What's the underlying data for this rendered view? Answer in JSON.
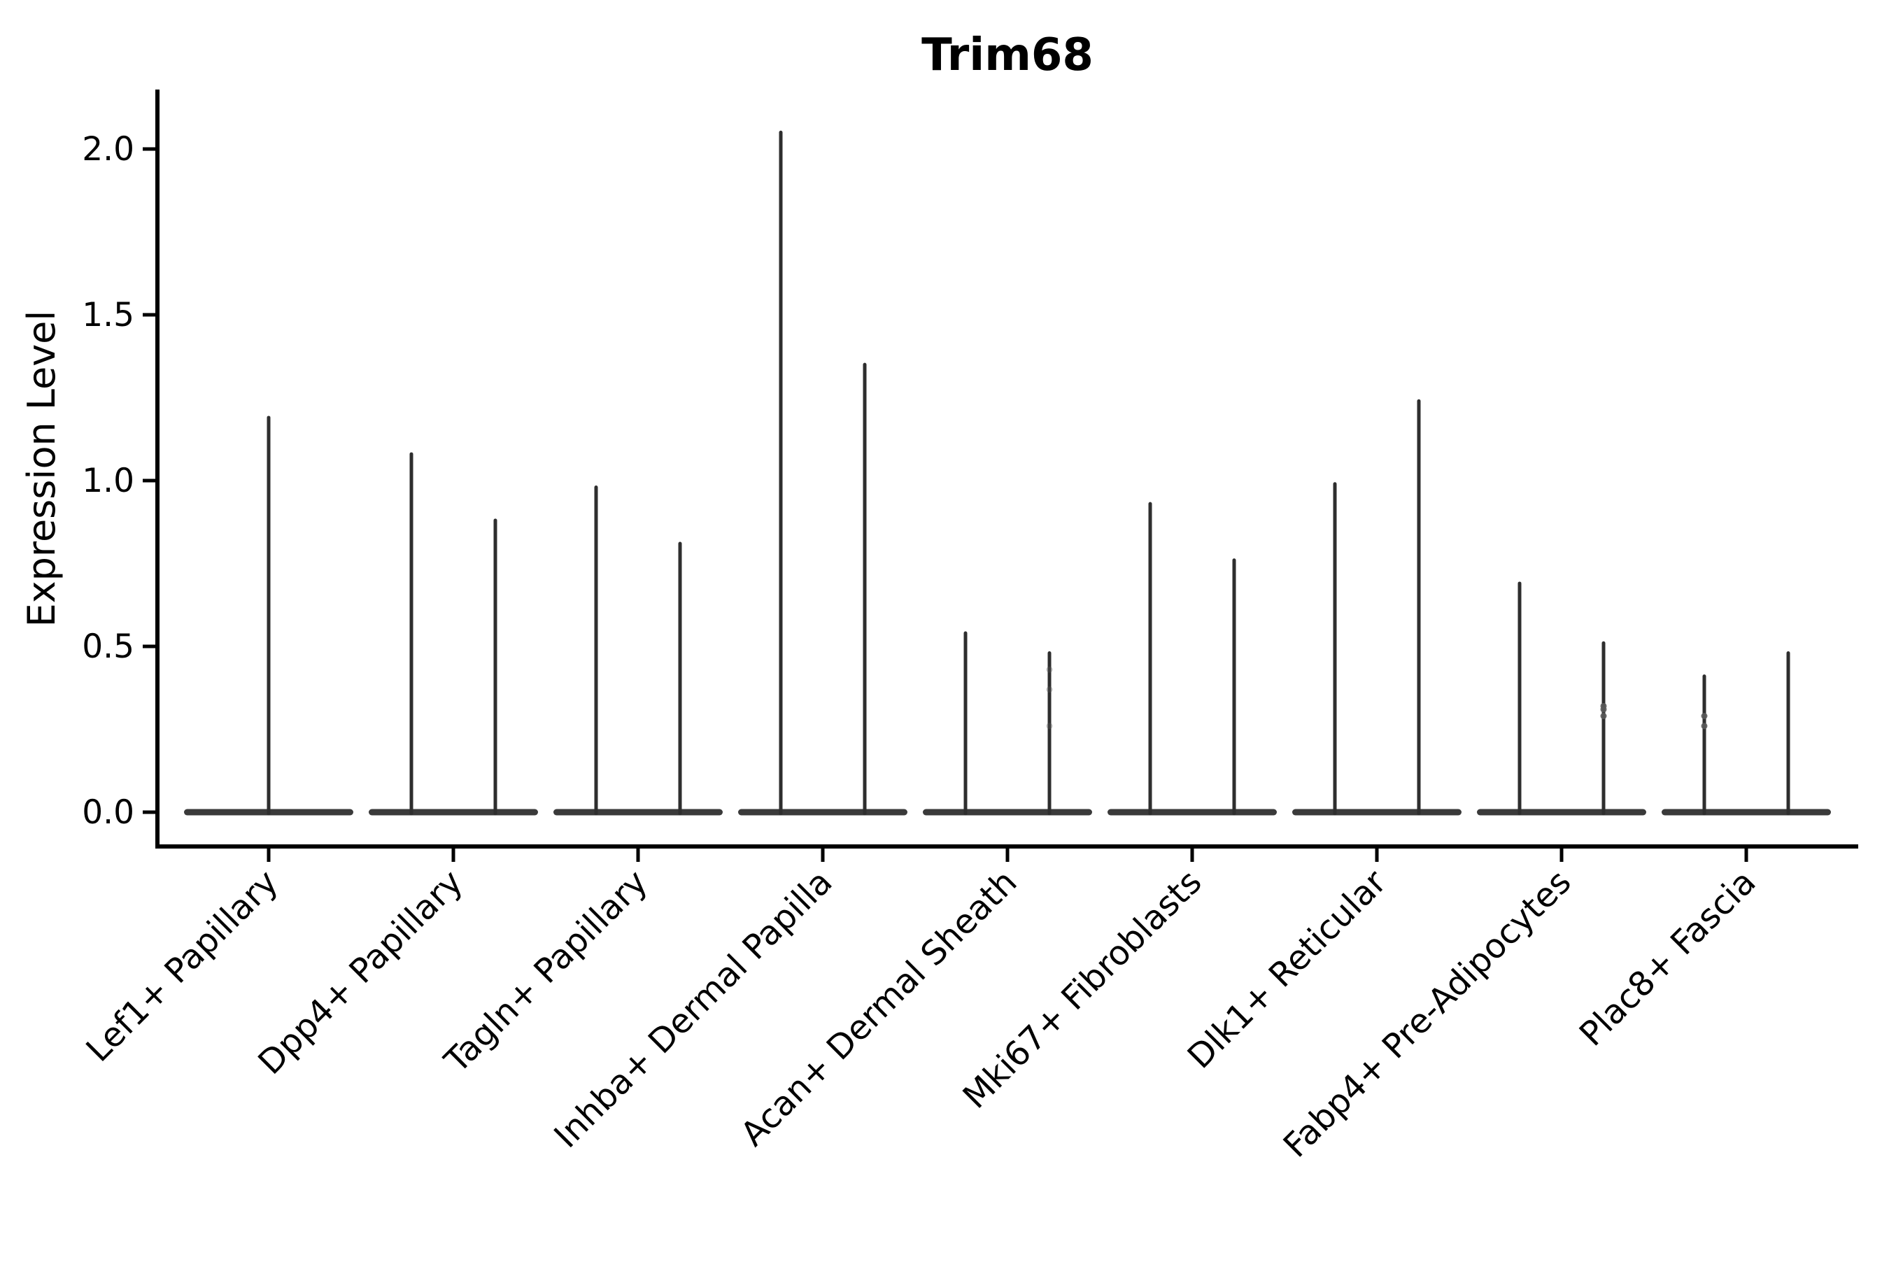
{
  "figure": {
    "title": "Trim68"
  },
  "colors": {
    "violin_line": "#2e2e2e",
    "violin_base": "#3a3a3a",
    "axis": "#000000",
    "text": "#000000",
    "jitter_dot": "#5a5a5a",
    "background": "#ffffff"
  },
  "chart_data": {
    "type": "violin",
    "title": "Trim68",
    "xlabel": "",
    "ylabel": "Expression Level",
    "ylim": [
      -0.1,
      2.18
    ],
    "yticks": [
      0.0,
      0.5,
      1.0,
      1.5,
      2.0
    ],
    "grid": false,
    "legend": "none",
    "categories": [
      "Lef1+ Papillary",
      "Dpp4+ Papillary",
      "Tagln+ Papillary",
      "Inhba+ Dermal Papilla",
      "Acan+ Dermal Sheath",
      "Mki67+ Fibroblasts",
      "Dlk1+ Reticular",
      "Fabp4+ Pre-Adipocytes",
      "Plac8+ Fascia"
    ],
    "description": "Thin violin plots: each category shows a flat dense base at expression 0 and narrow spike(s) reaching the maximum expression value.",
    "violins": [
      {
        "category": "Lef1+ Papillary",
        "baseline_value": 0.0,
        "spike_maxima": [
          1.19
        ]
      },
      {
        "category": "Dpp4+ Papillary",
        "baseline_value": 0.0,
        "spike_maxima": [
          1.08,
          0.88
        ]
      },
      {
        "category": "Tagln+ Papillary",
        "baseline_value": 0.0,
        "spike_maxima": [
          0.98,
          0.81
        ]
      },
      {
        "category": "Inhba+ Dermal Papilla",
        "baseline_value": 0.0,
        "spike_maxima": [
          2.05,
          1.35
        ]
      },
      {
        "category": "Acan+ Dermal Sheath",
        "baseline_value": 0.0,
        "spike_maxima": [
          0.54,
          0.48
        ]
      },
      {
        "category": "Mki67+ Fibroblasts",
        "baseline_value": 0.0,
        "spike_maxima": [
          0.93,
          0.76
        ]
      },
      {
        "category": "Dlk1+ Reticular",
        "baseline_value": 0.0,
        "spike_maxima": [
          0.99,
          1.24
        ]
      },
      {
        "category": "Fabp4+ Pre-Adipocytes",
        "baseline_value": 0.0,
        "spike_maxima": [
          0.69,
          0.51
        ]
      },
      {
        "category": "Plac8+ Fascia",
        "baseline_value": 0.0,
        "spike_maxima": [
          0.41,
          0.48
        ]
      }
    ],
    "jitter_points": [
      {
        "category": "Acan+ Dermal Sheath",
        "spike": 1,
        "values": [
          0.43,
          0.37,
          0.26
        ],
        "opacity": 0.35
      },
      {
        "category": "Fabp4+ Pre-Adipocytes",
        "spike": 1,
        "values": [
          0.32,
          0.31,
          0.29
        ],
        "opacity": 0.9
      },
      {
        "category": "Plac8+ Fascia",
        "spike": 0,
        "values": [
          0.29,
          0.26
        ],
        "opacity": 0.9
      }
    ]
  }
}
